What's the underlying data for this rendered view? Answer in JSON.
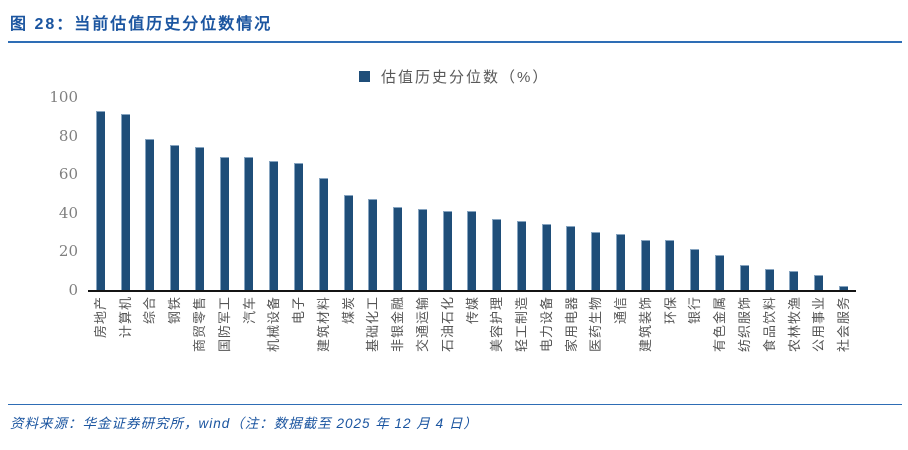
{
  "page": {
    "title": "图 28：当前估值历史分位数情况"
  },
  "footer": {
    "source": "资料来源：华金证券研究所，wind（注：数据截至 2025 年 12 月 4 日）"
  },
  "colors": {
    "bar": "#1f4e79",
    "title_blue": "#1b55a0",
    "rule_blue": "#2e6db5",
    "ytick_text": "#7f7f7f",
    "xlabel_text": "#555555",
    "axis_line": "#141414"
  },
  "chart_data": {
    "type": "bar",
    "legend": "估值历史分位数（%）",
    "legend_position": "top-center",
    "grid": false,
    "ylim": [
      0,
      100
    ],
    "yticks": [
      0,
      20,
      40,
      60,
      80,
      100
    ],
    "categories": [
      "房地产",
      "计算机",
      "综合",
      "钢铁",
      "商贸零售",
      "国防军工",
      "汽车",
      "机械设备",
      "电子",
      "建筑材料",
      "煤炭",
      "基础化工",
      "非银金融",
      "交通运输",
      "石油石化",
      "传媒",
      "美容护理",
      "轻工制造",
      "电力设备",
      "家用电器",
      "医药生物",
      "通信",
      "建筑装饰",
      "环保",
      "银行",
      "有色金属",
      "纺织服饰",
      "食品饮料",
      "农林牧渔",
      "公用事业",
      "社会服务"
    ],
    "values": [
      93,
      91,
      78,
      75,
      74,
      69,
      69,
      67,
      66,
      58,
      49,
      47,
      43,
      42,
      41,
      41,
      37,
      36,
      34,
      33,
      30,
      29,
      26,
      26,
      21,
      18,
      13,
      11,
      10,
      8,
      2
    ],
    "bar_color": "#1f4e79"
  }
}
